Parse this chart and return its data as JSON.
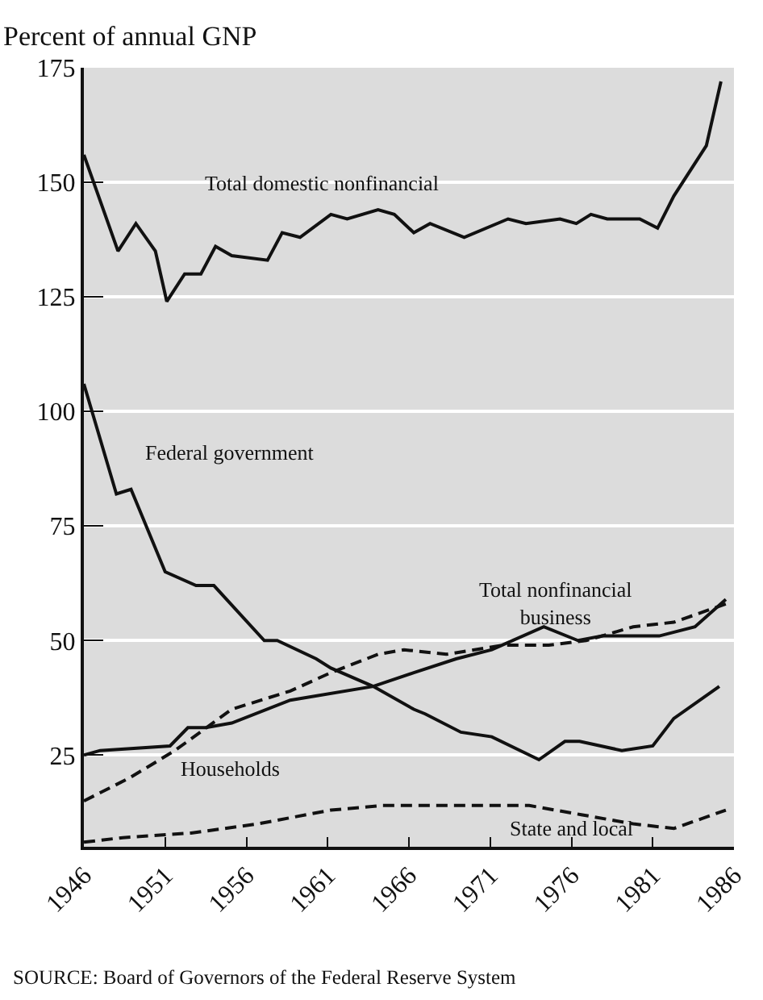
{
  "chart_data": {
    "type": "line",
    "ylabel": "Percent of annual GNP",
    "xlim": [
      1946,
      1986
    ],
    "xticks": [
      1946,
      1951,
      1956,
      1961,
      1966,
      1971,
      1976,
      1981,
      1986
    ],
    "ylim": [
      5,
      175
    ],
    "yticks": [
      25,
      50,
      75,
      100,
      125,
      150,
      175
    ],
    "grid": "y",
    "legend": false,
    "marker": "none",
    "series": [
      {
        "name": "Total domestic nonfinancial",
        "color": "#111111",
        "line_style": "solid",
        "x": [
          1946,
          1948.1,
          1949.2,
          1950.4,
          1951.1,
          1952.2,
          1953.2,
          1954.1,
          1955.1,
          1957.3,
          1958.2,
          1959.3,
          1961.2,
          1962.2,
          1964.1,
          1965.1,
          1966.3,
          1967.3,
          1969.4,
          1972.1,
          1973.2,
          1975.3,
          1976.3,
          1977.2,
          1978.2,
          1980.2,
          1981.3,
          1982.3,
          1984.3,
          1985.2
        ],
        "values": [
          156,
          135,
          141,
          135,
          124,
          130,
          130,
          136,
          134,
          133,
          139,
          138,
          143,
          142,
          144,
          143,
          139,
          141,
          138,
          142,
          141,
          142,
          141,
          143,
          142,
          142,
          140,
          147,
          158,
          172
        ]
      },
      {
        "name": "Federal government",
        "color": "#111111",
        "line_style": "solid",
        "x": [
          1946,
          1948,
          1948.9,
          1951,
          1952.9,
          1954,
          1957.1,
          1957.9,
          1960.3,
          1961.2,
          1963.8,
          1966.3,
          1967,
          1969.2,
          1971.1,
          1974,
          1975.6,
          1976.5,
          1979.1,
          1981,
          1982.3,
          1985.1
        ],
        "values": [
          106,
          82,
          83,
          65,
          62,
          62,
          50,
          50,
          46,
          44,
          40,
          35,
          34,
          30,
          29,
          24,
          28,
          28,
          26,
          27,
          33,
          40
        ]
      },
      {
        "name": "Total nonfinancial business",
        "color": "#111111",
        "line_style": "solid",
        "x": [
          1946,
          1947,
          1951.3,
          1952.4,
          1953.5,
          1955.1,
          1958.7,
          1963.8,
          1966.3,
          1968.9,
          1971.1,
          1974.3,
          1976.4,
          1977.9,
          1981.4,
          1983.6,
          1985.5
        ],
        "values": [
          25,
          26,
          27,
          31,
          31,
          32,
          37,
          40,
          43,
          46,
          48,
          53,
          50,
          51,
          51,
          53,
          59
        ]
      },
      {
        "name": "Households",
        "color": "#111111",
        "line_style": "dashed",
        "x": [
          1946,
          1948.8,
          1951.6,
          1955.1,
          1958.7,
          1961.2,
          1964.1,
          1965.7,
          1968.3,
          1971.8,
          1974.6,
          1976.9,
          1979.8,
          1982.3,
          1985.5
        ],
        "values": [
          15,
          20,
          26,
          35,
          39,
          43,
          47,
          48,
          47,
          49,
          49,
          50,
          53,
          54,
          58
        ]
      },
      {
        "name": "State and local",
        "color": "#111111",
        "line_style": "dashed",
        "x": [
          1946,
          1948.4,
          1952.6,
          1956.7,
          1961.2,
          1964.4,
          1968.9,
          1973.4,
          1976.6,
          1979.8,
          1982.3,
          1985.5
        ],
        "values": [
          6,
          7,
          8,
          10,
          13,
          14,
          14,
          14,
          12,
          10,
          9,
          13
        ]
      }
    ],
    "annotations": [
      "SOURCE: Board of Governors of the Federal Reserve System"
    ]
  }
}
